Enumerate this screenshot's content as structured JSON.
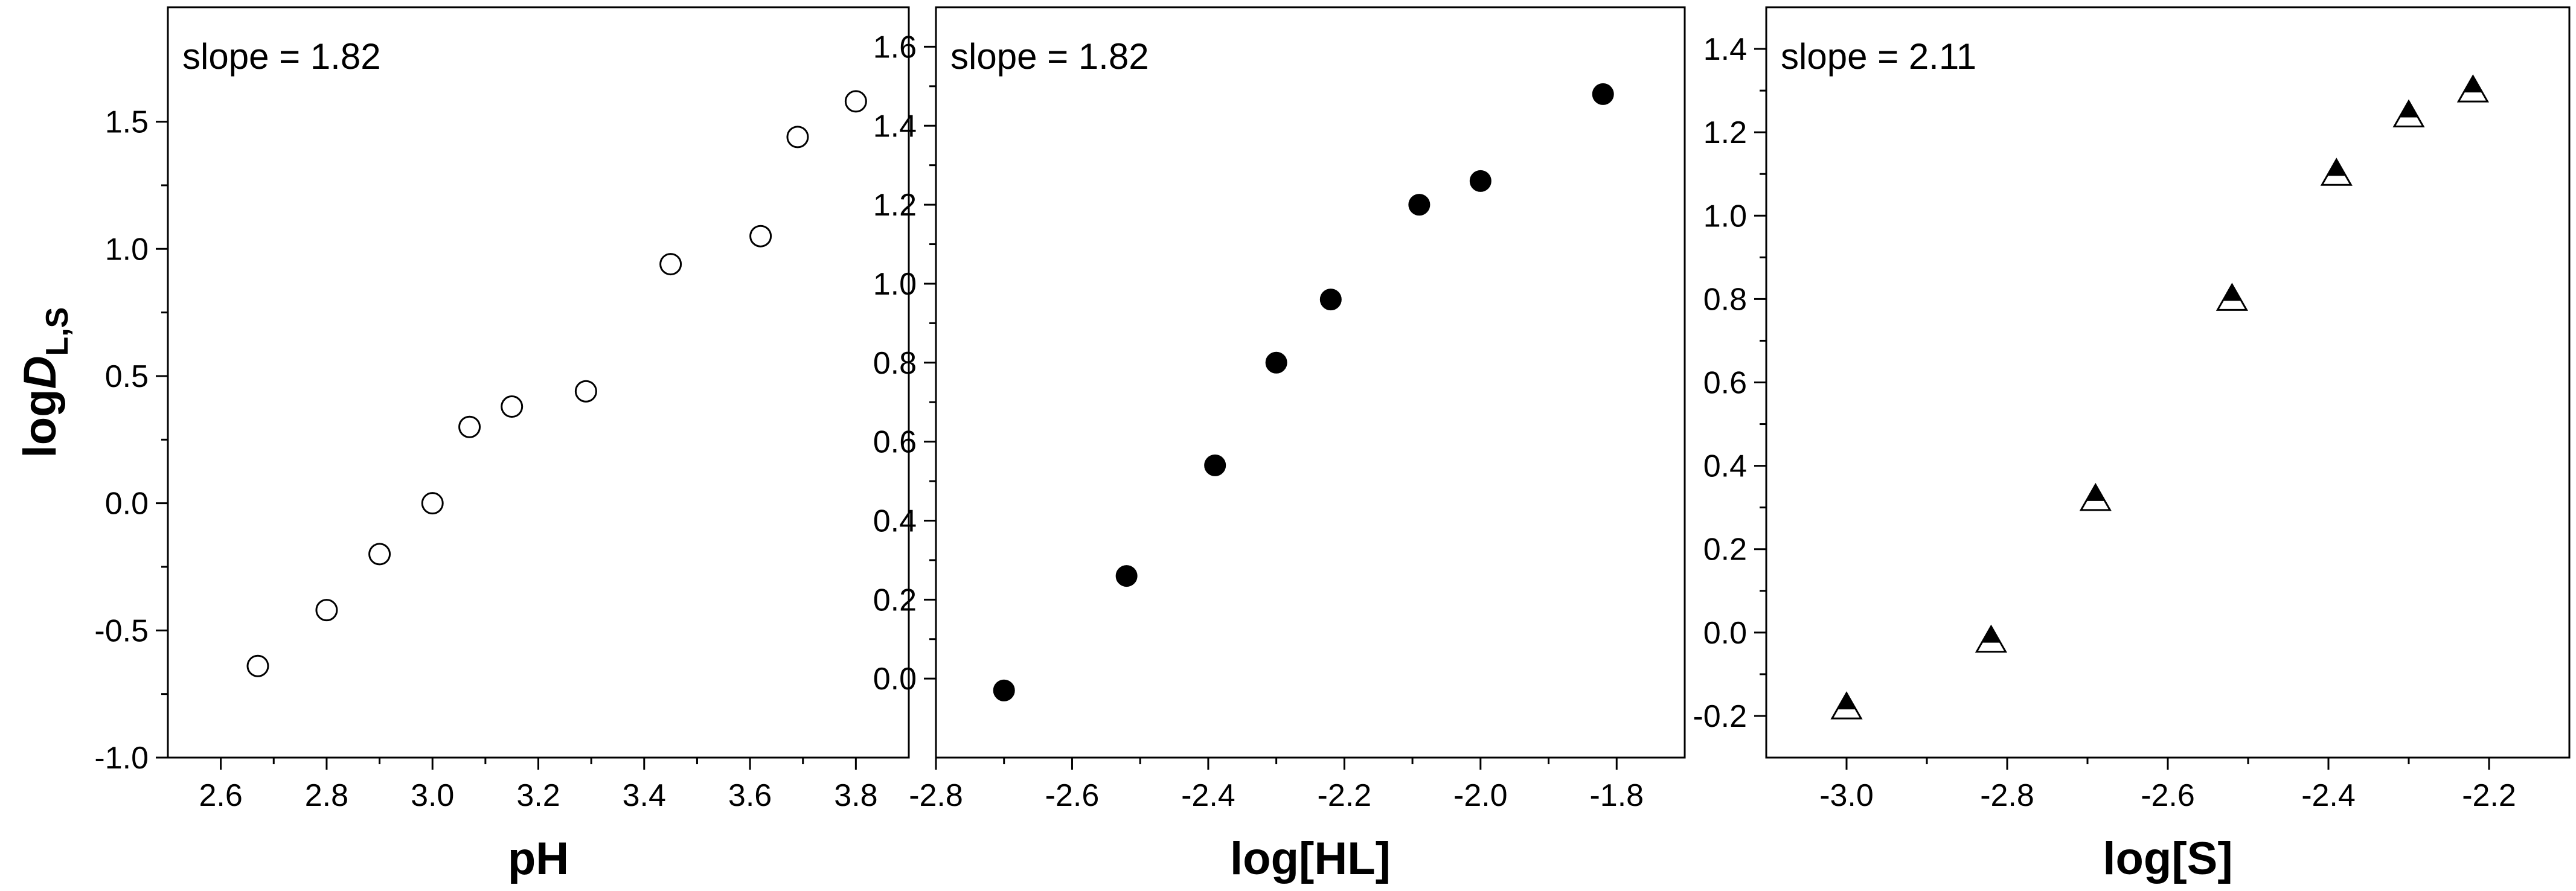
{
  "chart_data": [
    {
      "type": "scatter",
      "xlabel": "pH",
      "ylabel_main": "log",
      "ylabel_italic": "D",
      "ylabel_sub": "L,S",
      "annotation": "slope = 1.82",
      "xlim": [
        2.5,
        3.9
      ],
      "ylim": [
        -1.0,
        1.95
      ],
      "xticks": [
        2.6,
        2.8,
        3.0,
        3.2,
        3.4,
        3.6,
        3.8
      ],
      "xtick_labels": [
        "2.6",
        "2.8",
        "3.0",
        "3.2",
        "3.4",
        "3.6",
        "3.8"
      ],
      "yticks": [
        -1.0,
        -0.5,
        0.0,
        0.5,
        1.0,
        1.5
      ],
      "ytick_labels": [
        "-1.0",
        "-0.5",
        "0.0",
        "0.5",
        "1.0",
        "1.5"
      ],
      "marker": "open-circle",
      "points": [
        {
          "x": 2.67,
          "y": -0.64
        },
        {
          "x": 2.8,
          "y": -0.42
        },
        {
          "x": 2.9,
          "y": -0.2
        },
        {
          "x": 3.0,
          "y": 0.0
        },
        {
          "x": 3.07,
          "y": 0.3
        },
        {
          "x": 3.15,
          "y": 0.38
        },
        {
          "x": 3.29,
          "y": 0.44
        },
        {
          "x": 3.45,
          "y": 0.94
        },
        {
          "x": 3.62,
          "y": 1.05
        },
        {
          "x": 3.69,
          "y": 1.44
        },
        {
          "x": 3.8,
          "y": 1.58
        }
      ]
    },
    {
      "type": "scatter",
      "xlabel": "log[HL]",
      "annotation": "slope = 1.82",
      "xlim": [
        -2.8,
        -1.7
      ],
      "ylim": [
        -0.2,
        1.7
      ],
      "xticks": [
        -2.8,
        -2.6,
        -2.4,
        -2.2,
        -2.0,
        -1.8
      ],
      "xtick_labels": [
        "-2.8",
        "-2.6",
        "-2.4",
        "-2.2",
        "-2.0",
        "-1.8"
      ],
      "yticks": [
        0.0,
        0.2,
        0.4,
        0.6,
        0.8,
        1.0,
        1.2,
        1.4,
        1.6
      ],
      "ytick_labels": [
        "0.0",
        "0.2",
        "0.4",
        "0.6",
        "0.8",
        "1.0",
        "1.2",
        "1.4",
        "1.6"
      ],
      "marker": "filled-circle",
      "points": [
        {
          "x": -2.7,
          "y": -0.03
        },
        {
          "x": -2.52,
          "y": 0.26
        },
        {
          "x": -2.39,
          "y": 0.54
        },
        {
          "x": -2.3,
          "y": 0.8
        },
        {
          "x": -2.22,
          "y": 0.96
        },
        {
          "x": -2.09,
          "y": 1.2
        },
        {
          "x": -2.0,
          "y": 1.26
        },
        {
          "x": -1.82,
          "y": 1.48
        }
      ]
    },
    {
      "type": "scatter",
      "xlabel": "log[S]",
      "annotation": "slope = 2.11",
      "xlim": [
        -3.1,
        -2.1
      ],
      "ylim": [
        -0.3,
        1.5
      ],
      "xticks": [
        -3.0,
        -2.8,
        -2.6,
        -2.4,
        -2.2
      ],
      "xtick_labels": [
        "-3.0",
        "-2.8",
        "-2.6",
        "-2.4",
        "-2.2"
      ],
      "yticks": [
        -0.2,
        0.0,
        0.2,
        0.4,
        0.6,
        0.8,
        1.0,
        1.2,
        1.4
      ],
      "ytick_labels": [
        "-0.2",
        "0.0",
        "0.2",
        "0.4",
        "0.6",
        "0.8",
        "1.0",
        "1.2",
        "1.4"
      ],
      "marker": "half-filled-triangle",
      "points": [
        {
          "x": -3.0,
          "y": -0.18
        },
        {
          "x": -2.82,
          "y": -0.02
        },
        {
          "x": -2.69,
          "y": 0.32
        },
        {
          "x": -2.52,
          "y": 0.8
        },
        {
          "x": -2.39,
          "y": 1.1
        },
        {
          "x": -2.3,
          "y": 1.24
        },
        {
          "x": -2.22,
          "y": 1.3
        }
      ]
    }
  ]
}
